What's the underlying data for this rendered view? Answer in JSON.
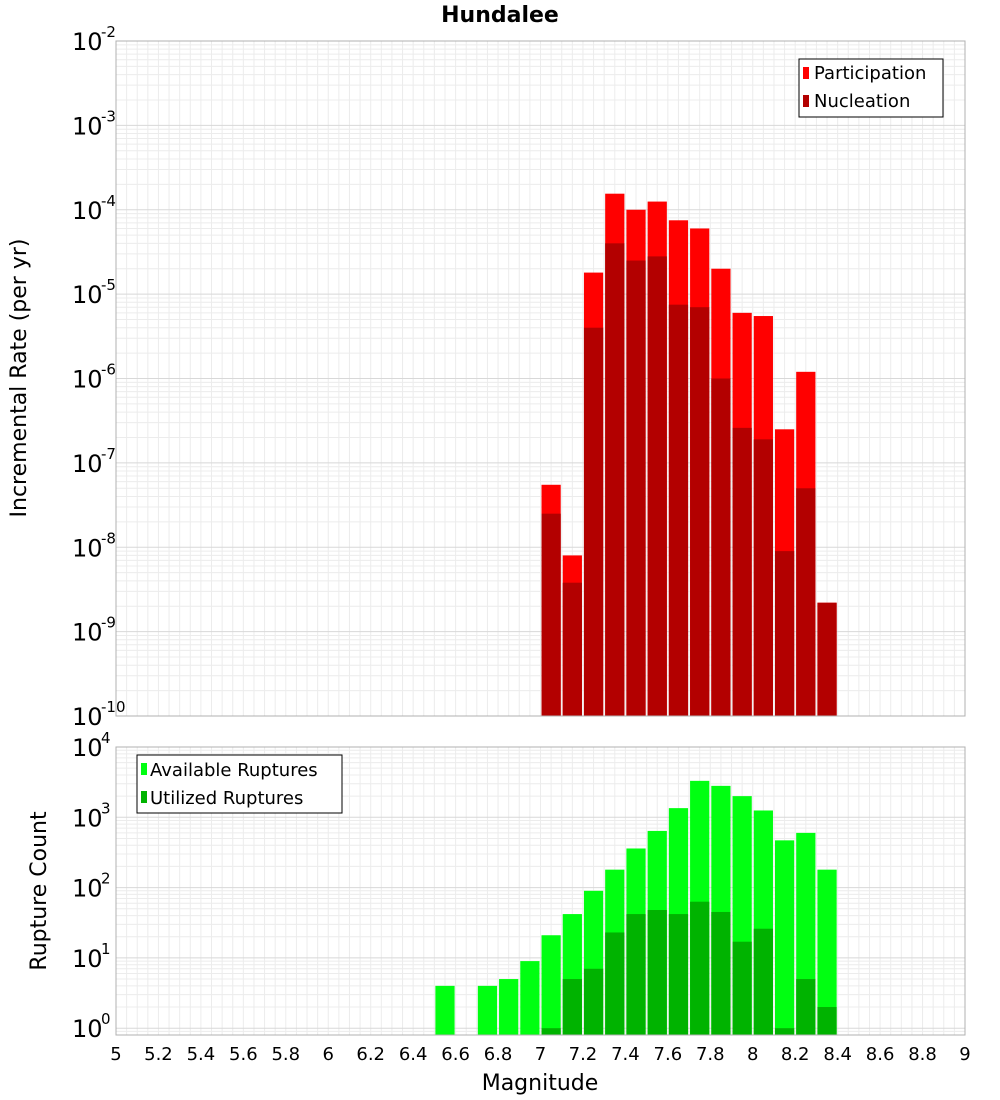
{
  "title": "Hundalee",
  "xlabel": "Magnitude",
  "x_ticks": [
    "5",
    "5.2",
    "5.4",
    "5.6",
    "5.8",
    "6",
    "6.2",
    "6.4",
    "6.6",
    "6.8",
    "7",
    "7.2",
    "7.4",
    "7.6",
    "7.8",
    "8",
    "8.2",
    "8.4",
    "8.6",
    "8.8",
    "9"
  ],
  "colors": {
    "participation": "#ff0000",
    "nucleation": "#b30000",
    "available": "#00ff11",
    "utilized": "#00b300"
  },
  "chart_data": [
    {
      "type": "bar",
      "title": "Hundalee",
      "ylabel": "Incremental Rate (per yr)",
      "xlabel": "Magnitude",
      "yscale": "log",
      "xlim": [
        5,
        9
      ],
      "ylim": [
        1e-10,
        0.01
      ],
      "y_ticks": [
        {
          "base": "10",
          "exp": "-2"
        },
        {
          "base": "10",
          "exp": "-3"
        },
        {
          "base": "10",
          "exp": "-4"
        },
        {
          "base": "10",
          "exp": "-5"
        },
        {
          "base": "10",
          "exp": "-6"
        },
        {
          "base": "10",
          "exp": "-7"
        },
        {
          "base": "10",
          "exp": "-8"
        },
        {
          "base": "10",
          "exp": "-9"
        },
        {
          "base": "10",
          "exp": "-10"
        }
      ],
      "legend": [
        "Participation",
        "Nucleation"
      ],
      "legend_position": "top-right",
      "series": [
        {
          "name": "Participation",
          "x": [
            7.05,
            7.15,
            7.25,
            7.35,
            7.45,
            7.55,
            7.65,
            7.75,
            7.85,
            7.95,
            8.05,
            8.15,
            8.25,
            8.35
          ],
          "values": [
            5.5e-08,
            8e-09,
            1.8e-05,
            0.000155,
            0.0001,
            0.000125,
            7.5e-05,
            6e-05,
            2e-05,
            6e-06,
            5.5e-06,
            2.5e-07,
            1.2e-06,
            2.2e-09
          ]
        },
        {
          "name": "Nucleation",
          "x": [
            7.05,
            7.15,
            7.25,
            7.35,
            7.45,
            7.55,
            7.65,
            7.75,
            7.85,
            7.95,
            8.05,
            8.15,
            8.25,
            8.35
          ],
          "values": [
            2.5e-08,
            3.8e-09,
            4e-06,
            4e-05,
            2.5e-05,
            2.8e-05,
            7.5e-06,
            7e-06,
            1e-06,
            2.6e-07,
            1.9e-07,
            9e-09,
            5e-08,
            2.2e-09
          ]
        }
      ]
    },
    {
      "type": "bar",
      "ylabel": "Rupture Count",
      "xlabel": "Magnitude",
      "yscale": "log",
      "xlim": [
        5,
        9
      ],
      "ylim": [
        0.8,
        10000
      ],
      "y_ticks": [
        {
          "base": "10",
          "exp": "4",
          "value": 10000
        },
        {
          "base": "10",
          "exp": "3",
          "value": 1000
        },
        {
          "base": "10",
          "exp": "2",
          "value": 100
        },
        {
          "base": "10",
          "exp": "1",
          "value": 10
        },
        {
          "base": "10",
          "exp": "0",
          "value": 1
        }
      ],
      "legend": [
        "Available Ruptures",
        "Utilized Ruptures"
      ],
      "legend_position": "top-left",
      "series": [
        {
          "name": "Available Ruptures",
          "x": [
            6.55,
            6.75,
            6.85,
            6.95,
            7.05,
            7.15,
            7.25,
            7.35,
            7.45,
            7.55,
            7.65,
            7.75,
            7.85,
            7.95,
            8.05,
            8.15,
            8.25,
            8.35
          ],
          "values": [
            4,
            4,
            5,
            9,
            21,
            42,
            90,
            180,
            360,
            640,
            1350,
            3300,
            2800,
            2000,
            1250,
            470,
            600,
            180
          ]
        },
        {
          "name": "Utilized Ruptures",
          "x": [
            7.05,
            7.15,
            7.25,
            7.35,
            7.45,
            7.55,
            7.65,
            7.75,
            7.85,
            7.95,
            8.05,
            8.15,
            8.25,
            8.35
          ],
          "values": [
            1,
            5,
            7,
            23,
            42,
            48,
            42,
            63,
            45,
            17,
            26,
            1,
            5,
            2
          ]
        }
      ]
    }
  ]
}
